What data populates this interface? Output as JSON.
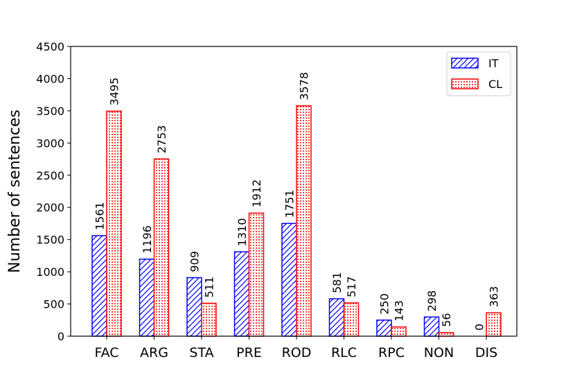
{
  "chart_data": {
    "type": "bar",
    "categories": [
      "FAC",
      "ARG",
      "STA",
      "PRE",
      "ROD",
      "RLC",
      "RPC",
      "NON",
      "DIS"
    ],
    "series": [
      {
        "name": "IT",
        "values": [
          1561,
          1196,
          909,
          1310,
          1751,
          581,
          250,
          298,
          0
        ],
        "color": "#0000ff",
        "pattern": "hatch"
      },
      {
        "name": "CL",
        "values": [
          3495,
          2753,
          511,
          1912,
          3578,
          517,
          143,
          56,
          363
        ],
        "color": "#ff0000",
        "pattern": "dots"
      }
    ],
    "ylabel": "Number of sentences",
    "ylim": [
      0,
      4500
    ],
    "yticks": [
      0,
      500,
      1000,
      1500,
      2000,
      2500,
      3000,
      3500,
      4000,
      4500
    ],
    "grid": false,
    "legend_position": "top-right",
    "data_labels": true
  }
}
